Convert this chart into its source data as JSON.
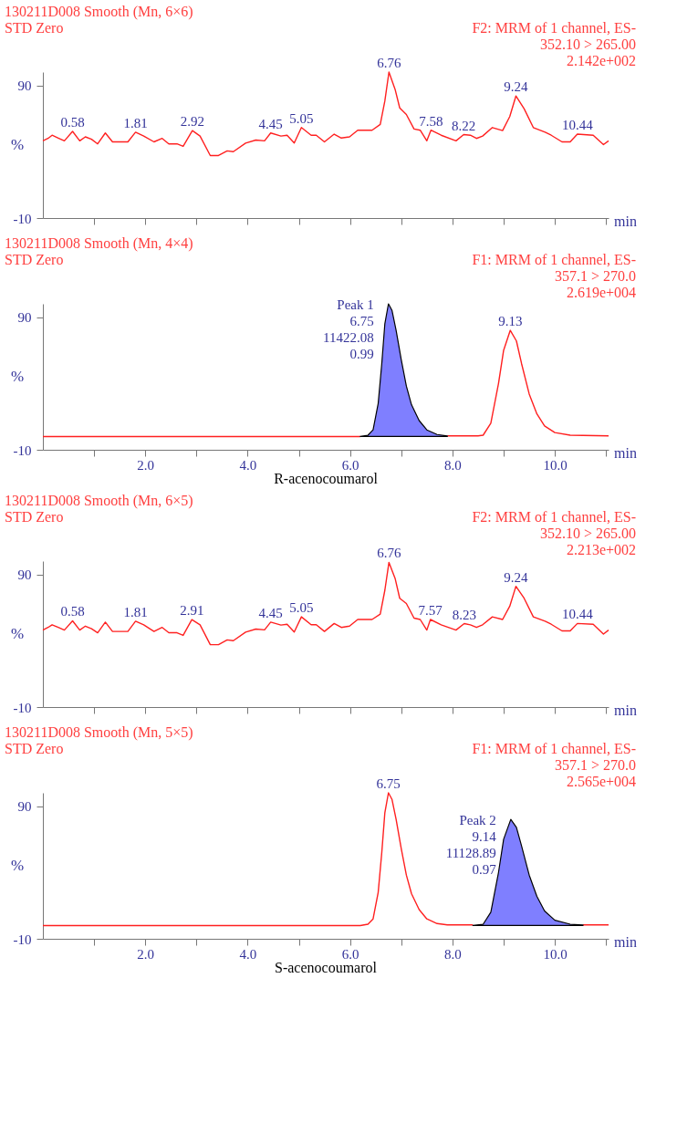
{
  "chart_data": [
    {
      "type": "line",
      "title": "130211D008   Smooth (Mn, 6×6)",
      "subtitle": "STD Zero",
      "xlabel": "min",
      "ylabel": "%",
      "xlim": [
        0,
        11.05
      ],
      "ylim": [
        -10,
        100
      ],
      "yticks": [
        -10,
        90
      ],
      "xticks": [
        {
          "value": 1,
          "label": null
        },
        {
          "value": 2,
          "label": null
        },
        {
          "value": 3,
          "label": null
        },
        {
          "value": 4,
          "label": null
        },
        {
          "value": 5,
          "label": null
        },
        {
          "value": 6,
          "label": null
        },
        {
          "value": 7,
          "label": null
        },
        {
          "value": 8,
          "label": null
        },
        {
          "value": 9,
          "label": null
        },
        {
          "value": 10,
          "label": null
        },
        {
          "value": 11,
          "label": null
        }
      ],
      "tick_labels": "y",
      "grid": false,
      "annotations": [
        "F2: MRM of 1 channel, ES-",
        "352.10 > 265.00",
        "2.142e+002",
        {
          "text": "0.58",
          "x": 0.58,
          "y": 55.3
        },
        {
          "text": "1.81",
          "x": 1.81,
          "y": 54.7
        },
        {
          "text": "2.92",
          "x": 2.92,
          "y": 55.9
        },
        {
          "text": "4.45",
          "x": 4.45,
          "y": 54.1
        },
        {
          "text": "5.05",
          "x": 5.05,
          "y": 58.2
        },
        {
          "text": "6.76",
          "x": 6.76,
          "y": 100
        },
        {
          "text": "7.58",
          "x": 7.58,
          "y": 56.2
        },
        {
          "text": "8.22",
          "x": 8.22,
          "y": 52.9
        },
        {
          "text": "9.24",
          "x": 9.24,
          "y": 82
        },
        {
          "text": "10.44",
          "x": 10.44,
          "y": 53.2
        }
      ],
      "series": [
        {
          "color": "#ff2020",
          "x": [
            0,
            0.1,
            0.18,
            0.3,
            0.42,
            0.58,
            0.72,
            0.83,
            0.95,
            1.07,
            1.22,
            1.36,
            1.48,
            1.66,
            1.81,
            1.97,
            2.17,
            2.33,
            2.46,
            2.62,
            2.74,
            2.92,
            3.07,
            3.27,
            3.43,
            3.6,
            3.72,
            3.96,
            4.16,
            4.33,
            4.45,
            4.65,
            4.77,
            4.91,
            5.05,
            5.24,
            5.34,
            5.5,
            5.69,
            5.83,
            5.99,
            6.15,
            6.43,
            6.59,
            6.68,
            6.76,
            6.88,
            6.97,
            7.1,
            7.25,
            7.37,
            7.5,
            7.58,
            7.78,
            8.07,
            8.22,
            8.35,
            8.47,
            8.59,
            8.78,
            8.98,
            9.12,
            9.24,
            9.4,
            9.58,
            9.81,
            9.93,
            10.14,
            10.3,
            10.44,
            10.75,
            10.95,
            11.05
          ],
          "values": [
            48.2,
            50,
            52.4,
            50.3,
            48.2,
            55.3,
            48.2,
            51.2,
            49.4,
            45.9,
            54.1,
            47.4,
            47.4,
            47.4,
            54.7,
            51.8,
            47.4,
            50,
            45.9,
            45.9,
            44.1,
            55.9,
            51.8,
            37.1,
            37.1,
            40.6,
            40,
            46.5,
            48.8,
            48.2,
            54.1,
            51.8,
            52.4,
            46.5,
            58.2,
            52.4,
            52.4,
            47.4,
            53.2,
            50.3,
            51.2,
            56.2,
            56.2,
            60.6,
            78.2,
            100,
            87,
            73,
            68,
            57.1,
            56.2,
            48.2,
            56.2,
            52.4,
            48.2,
            52.9,
            52.4,
            50,
            51.8,
            58.2,
            55.9,
            66.5,
            82,
            72.4,
            58.2,
            54.7,
            52.4,
            47.4,
            47.4,
            53.2,
            52.4,
            45.3,
            48.2
          ]
        }
      ]
    },
    {
      "type": "line",
      "title": "130211D008   Smooth (Mn, 4×4)",
      "subtitle": "STD Zero",
      "xlabel": "min",
      "ylabel": "%",
      "xlim": [
        0,
        11.05
      ],
      "ylim": [
        -10,
        100
      ],
      "yticks": [
        -10,
        90
      ],
      "xticks": [
        {
          "value": 1,
          "label": null
        },
        {
          "value": 2,
          "label": "2.0"
        },
        {
          "value": 3,
          "label": null
        },
        {
          "value": 4,
          "label": "4.0"
        },
        {
          "value": 5,
          "label": null
        },
        {
          "value": 6,
          "label": "6.0"
        },
        {
          "value": 7,
          "label": null
        },
        {
          "value": 8,
          "label": "8.0"
        },
        {
          "value": 9,
          "label": null
        },
        {
          "value": 10,
          "label": "10.0"
        },
        {
          "value": 11,
          "label": null
        }
      ],
      "grid": false,
      "annotations": [
        "F1: MRM of 1 channel, ES-",
        "357.1 > 270.0",
        "2.619e+004",
        "R-acenocoumarol",
        {
          "text": "Peak 1\n6.75\n11422.08\n0.99",
          "x": 6.75,
          "y": 100
        },
        {
          "text": "9.13",
          "x": 9.13,
          "y": 80
        }
      ],
      "series": [
        {
          "color": "#ff2020",
          "x": [
            0,
            6.2,
            7.0,
            7.9,
            8.5,
            8.6,
            8.75,
            8.9,
            9.0,
            9.13,
            9.25,
            9.35,
            9.5,
            9.65,
            9.8,
            10.0,
            10.3,
            11.05
          ],
          "values": [
            0,
            0,
            null,
            0.5,
            0.5,
            1,
            10,
            40,
            65,
            80,
            72,
            55,
            32,
            17,
            8,
            3,
            1,
            0.5
          ]
        },
        {
          "type": "area",
          "color": "#7f7fff",
          "x": [
            6.2,
            6.35,
            6.45,
            6.55,
            6.62,
            6.68,
            6.75,
            6.82,
            6.9,
            7.0,
            7.1,
            7.2,
            7.35,
            7.5,
            7.7,
            7.9
          ],
          "values": [
            0,
            1,
            5,
            25,
            55,
            85,
            100,
            95,
            80,
            58,
            38,
            24,
            12,
            5,
            1.5,
            0.5
          ]
        }
      ]
    },
    {
      "type": "line",
      "title": "130211D008   Smooth (Mn, 6×5)",
      "subtitle": "STD Zero",
      "xlabel": "min",
      "ylabel": "%",
      "xlim": [
        0,
        11.05
      ],
      "ylim": [
        -10,
        100
      ],
      "yticks": [
        -10,
        90
      ],
      "xticks": [
        {
          "value": 1,
          "label": null
        },
        {
          "value": 2,
          "label": null
        },
        {
          "value": 3,
          "label": null
        },
        {
          "value": 4,
          "label": null
        },
        {
          "value": 5,
          "label": null
        },
        {
          "value": 6,
          "label": null
        },
        {
          "value": 7,
          "label": null
        },
        {
          "value": 8,
          "label": null
        },
        {
          "value": 9,
          "label": null
        },
        {
          "value": 10,
          "label": null
        },
        {
          "value": 11,
          "label": null
        }
      ],
      "tick_labels": "y",
      "grid": false,
      "annotations": [
        "F2: MRM of 1 channel, ES-",
        "352.10 > 265.00",
        "2.213e+002",
        {
          "text": "0.58",
          "x": 0.58,
          "y": 55.3
        },
        {
          "text": "1.81",
          "x": 1.81,
          "y": 54.7
        },
        {
          "text": "2.91",
          "x": 2.91,
          "y": 55.9
        },
        {
          "text": "4.45",
          "x": 4.45,
          "y": 54.1
        },
        {
          "text": "5.05",
          "x": 5.05,
          "y": 58.2
        },
        {
          "text": "6.76",
          "x": 6.76,
          "y": 99
        },
        {
          "text": "7.57",
          "x": 7.57,
          "y": 56.2
        },
        {
          "text": "8.23",
          "x": 8.23,
          "y": 52.9
        },
        {
          "text": "9.24",
          "x": 9.24,
          "y": 81
        },
        {
          "text": "10.44",
          "x": 10.44,
          "y": 53.2
        }
      ],
      "series": [
        {
          "color": "#ff2020",
          "x": [
            0,
            0.1,
            0.18,
            0.3,
            0.42,
            0.58,
            0.72,
            0.83,
            0.95,
            1.07,
            1.22,
            1.36,
            1.48,
            1.66,
            1.81,
            1.97,
            2.17,
            2.33,
            2.46,
            2.62,
            2.74,
            2.91,
            3.07,
            3.27,
            3.43,
            3.6,
            3.72,
            3.96,
            4.16,
            4.33,
            4.45,
            4.65,
            4.77,
            4.91,
            5.05,
            5.24,
            5.34,
            5.5,
            5.69,
            5.83,
            5.99,
            6.15,
            6.43,
            6.59,
            6.68,
            6.76,
            6.88,
            6.97,
            7.1,
            7.25,
            7.37,
            7.5,
            7.57,
            7.78,
            8.07,
            8.23,
            8.35,
            8.47,
            8.59,
            8.78,
            8.98,
            9.12,
            9.24,
            9.4,
            9.58,
            9.81,
            9.93,
            10.14,
            10.3,
            10.44,
            10.75,
            10.95,
            11.05
          ],
          "values": [
            48,
            50,
            52,
            50,
            48,
            55,
            48,
            51,
            49,
            46,
            54,
            47,
            47,
            47,
            54.7,
            52,
            47,
            50,
            46,
            46,
            44,
            55.9,
            52,
            37,
            37,
            40.6,
            40,
            46.5,
            48.8,
            48.2,
            54,
            51.8,
            52.4,
            46.5,
            58,
            52,
            52,
            47,
            53,
            50,
            51,
            56,
            56,
            60,
            78,
            99,
            87,
            72,
            68,
            57,
            56,
            48,
            56,
            52,
            48,
            52.9,
            52,
            50,
            52,
            58,
            56,
            66,
            81,
            72,
            58,
            54.7,
            52.4,
            47.4,
            47.4,
            53,
            52.4,
            45,
            48
          ]
        }
      ]
    },
    {
      "type": "line",
      "title": "130211D008   Smooth (Mn, 5×5)",
      "subtitle": "STD Zero",
      "xlabel": "min",
      "ylabel": "%",
      "xlim": [
        0,
        11.05
      ],
      "ylim": [
        -10,
        100
      ],
      "yticks": [
        -10,
        90
      ],
      "xticks": [
        {
          "value": 1,
          "label": null
        },
        {
          "value": 2,
          "label": "2.0"
        },
        {
          "value": 3,
          "label": null
        },
        {
          "value": 4,
          "label": "4.0"
        },
        {
          "value": 5,
          "label": null
        },
        {
          "value": 6,
          "label": "6.0"
        },
        {
          "value": 7,
          "label": null
        },
        {
          "value": 8,
          "label": "8.0"
        },
        {
          "value": 9,
          "label": null
        },
        {
          "value": 10,
          "label": "10.0"
        },
        {
          "value": 11,
          "label": null
        }
      ],
      "grid": false,
      "annotations": [
        "F1: MRM of 1 channel, ES-",
        "357.1 > 270.0",
        "2.565e+004",
        "S-acenocoumarol",
        {
          "text": "6.75",
          "x": 6.75,
          "y": 100
        },
        {
          "text": "Peak 2\n9.14\n11128.89\n0.97",
          "x": 9.14,
          "y": 80
        }
      ],
      "series": [
        {
          "color": "#ff2020",
          "x": [
            0,
            6.2,
            6.35,
            6.45,
            6.55,
            6.62,
            6.68,
            6.75,
            6.82,
            6.9,
            7.0,
            7.1,
            7.2,
            7.35,
            7.5,
            7.7,
            7.9,
            8.4,
            9.0,
            10.55,
            11.05
          ],
          "values": [
            0,
            0,
            1,
            5,
            25,
            55,
            85,
            100,
            95,
            80,
            58,
            38,
            24,
            12,
            5,
            1.5,
            0.5,
            0.5,
            null,
            0.5,
            0.5
          ]
        },
        {
          "type": "area",
          "color": "#7f7fff",
          "x": [
            8.4,
            8.6,
            8.75,
            8.9,
            9.0,
            9.14,
            9.25,
            9.35,
            9.5,
            9.65,
            9.8,
            10.0,
            10.3,
            10.55
          ],
          "values": [
            0,
            1,
            10,
            40,
            65,
            80,
            74,
            60,
            38,
            22,
            11,
            4,
            1,
            0.5
          ]
        }
      ]
    }
  ]
}
